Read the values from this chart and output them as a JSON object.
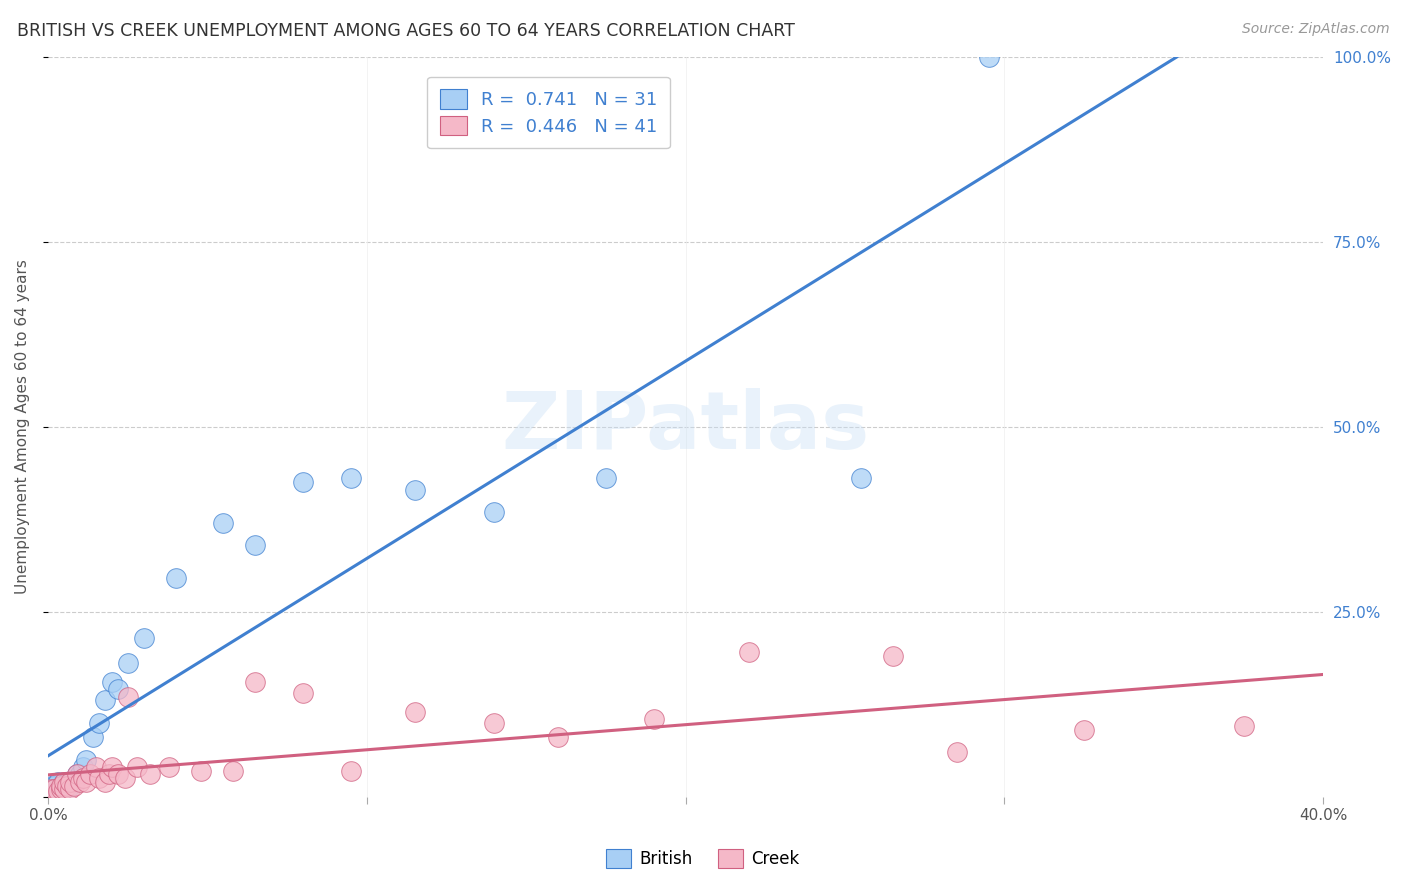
{
  "title": "BRITISH VS CREEK UNEMPLOYMENT AMONG AGES 60 TO 64 YEARS CORRELATION CHART",
  "source": "Source: ZipAtlas.com",
  "ylabel": "Unemployment Among Ages 60 to 64 years",
  "xlim": [
    0,
    0.4
  ],
  "ylim": [
    0,
    1.0
  ],
  "xticks": [
    0.0,
    0.1,
    0.2,
    0.3,
    0.4
  ],
  "yticks": [
    0.0,
    0.25,
    0.5,
    0.75,
    1.0
  ],
  "british_color": "#A8CFF5",
  "creek_color": "#F5B8C8",
  "british_line_color": "#4080D0",
  "creek_line_color": "#D06080",
  "british_R": 0.741,
  "british_N": 31,
  "creek_R": 0.446,
  "creek_N": 41,
  "watermark": "ZIPatlas",
  "background_color": "#FFFFFF",
  "grid_color": "#CCCCCC",
  "british_x": [
    0.001,
    0.002,
    0.003,
    0.003,
    0.004,
    0.005,
    0.005,
    0.006,
    0.007,
    0.008,
    0.009,
    0.01,
    0.011,
    0.012,
    0.014,
    0.016,
    0.018,
    0.02,
    0.022,
    0.025,
    0.03,
    0.04,
    0.055,
    0.065,
    0.08,
    0.095,
    0.115,
    0.14,
    0.175,
    0.255,
    0.295
  ],
  "british_y": [
    0.015,
    0.015,
    0.01,
    0.02,
    0.015,
    0.01,
    0.02,
    0.02,
    0.015,
    0.02,
    0.03,
    0.03,
    0.04,
    0.05,
    0.08,
    0.1,
    0.13,
    0.155,
    0.145,
    0.18,
    0.215,
    0.295,
    0.37,
    0.34,
    0.425,
    0.43,
    0.415,
    0.385,
    0.43,
    0.43,
    1.0
  ],
  "creek_x": [
    0.001,
    0.002,
    0.003,
    0.004,
    0.004,
    0.005,
    0.005,
    0.006,
    0.007,
    0.007,
    0.008,
    0.009,
    0.01,
    0.011,
    0.012,
    0.013,
    0.015,
    0.016,
    0.018,
    0.019,
    0.02,
    0.022,
    0.024,
    0.025,
    0.028,
    0.032,
    0.038,
    0.048,
    0.058,
    0.065,
    0.08,
    0.095,
    0.115,
    0.14,
    0.16,
    0.19,
    0.22,
    0.265,
    0.285,
    0.325,
    0.375
  ],
  "creek_y": [
    0.01,
    0.01,
    0.008,
    0.01,
    0.015,
    0.01,
    0.02,
    0.015,
    0.01,
    0.02,
    0.015,
    0.03,
    0.02,
    0.025,
    0.02,
    0.03,
    0.04,
    0.025,
    0.02,
    0.03,
    0.04,
    0.03,
    0.025,
    0.135,
    0.04,
    0.03,
    0.04,
    0.035,
    0.035,
    0.155,
    0.14,
    0.035,
    0.115,
    0.1,
    0.08,
    0.105,
    0.195,
    0.19,
    0.06,
    0.09,
    0.095
  ]
}
